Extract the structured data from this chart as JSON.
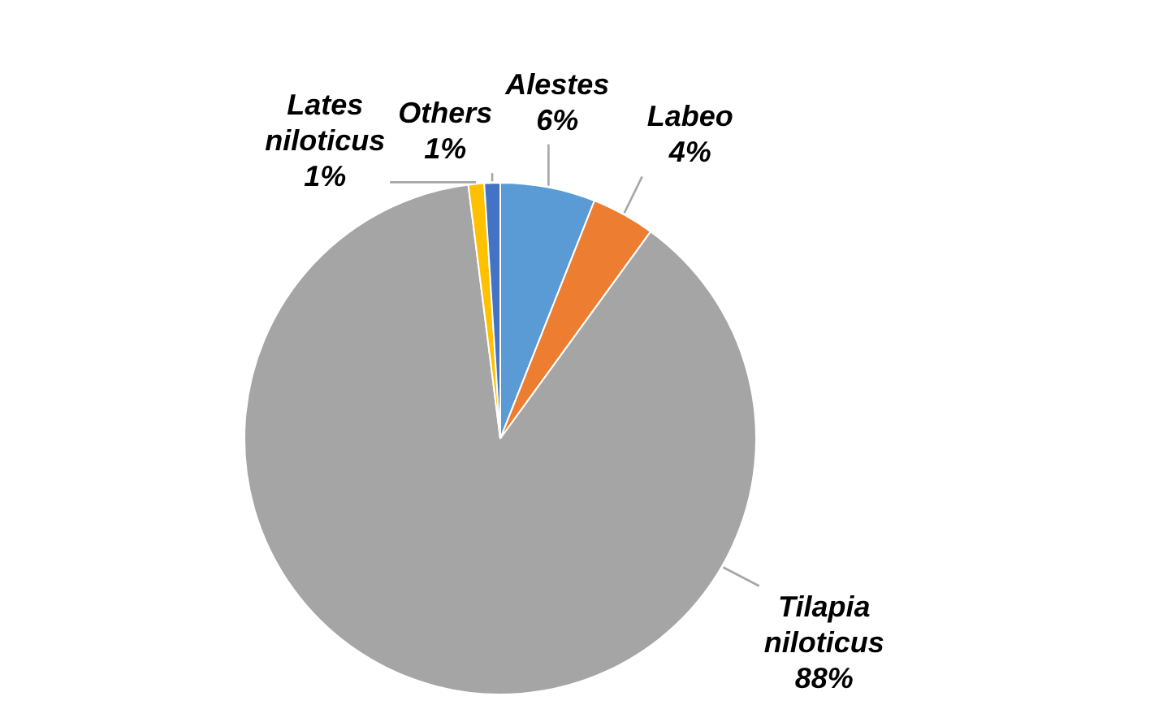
{
  "chart_data": {
    "type": "pie",
    "categories": [
      "Alestes",
      "Labeo",
      "Tilapia niloticus",
      "Lates niloticus",
      "Others"
    ],
    "values": [
      6,
      4,
      88,
      1,
      1
    ],
    "colors": [
      "#5b9bd5",
      "#ed7d31",
      "#a5a5a5",
      "#ffc000",
      "#4472c4"
    ],
    "value_labels": [
      "6%",
      "4%",
      "88%",
      "1%",
      "1%"
    ]
  }
}
